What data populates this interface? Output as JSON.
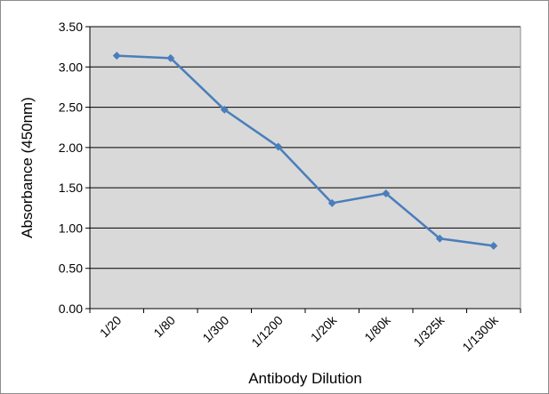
{
  "chart_data": {
    "type": "line",
    "title": "",
    "xlabel": "Antibody Dilution",
    "ylabel": "Absorbance (450nm)",
    "categories": [
      "1/20",
      "1/80",
      "1/300",
      "1/1200",
      "1/20k",
      "1/80k",
      "1/325k",
      "1/1300k"
    ],
    "series": [
      {
        "values": [
          3.14,
          3.11,
          2.47,
          2.01,
          1.31,
          1.43,
          0.87,
          0.78
        ]
      }
    ],
    "ylim": [
      0,
      3.5
    ],
    "ytick_labels": [
      "0.00",
      "0.50",
      "1.00",
      "1.50",
      "2.00",
      "2.50",
      "3.00",
      "3.50"
    ],
    "grid": "horizontal",
    "legend": "none",
    "colors": {
      "plot_background": "#d9d9d9",
      "gridline": "#000000",
      "series_line": "#4a7ebb",
      "marker": "#4a7ebb"
    }
  }
}
